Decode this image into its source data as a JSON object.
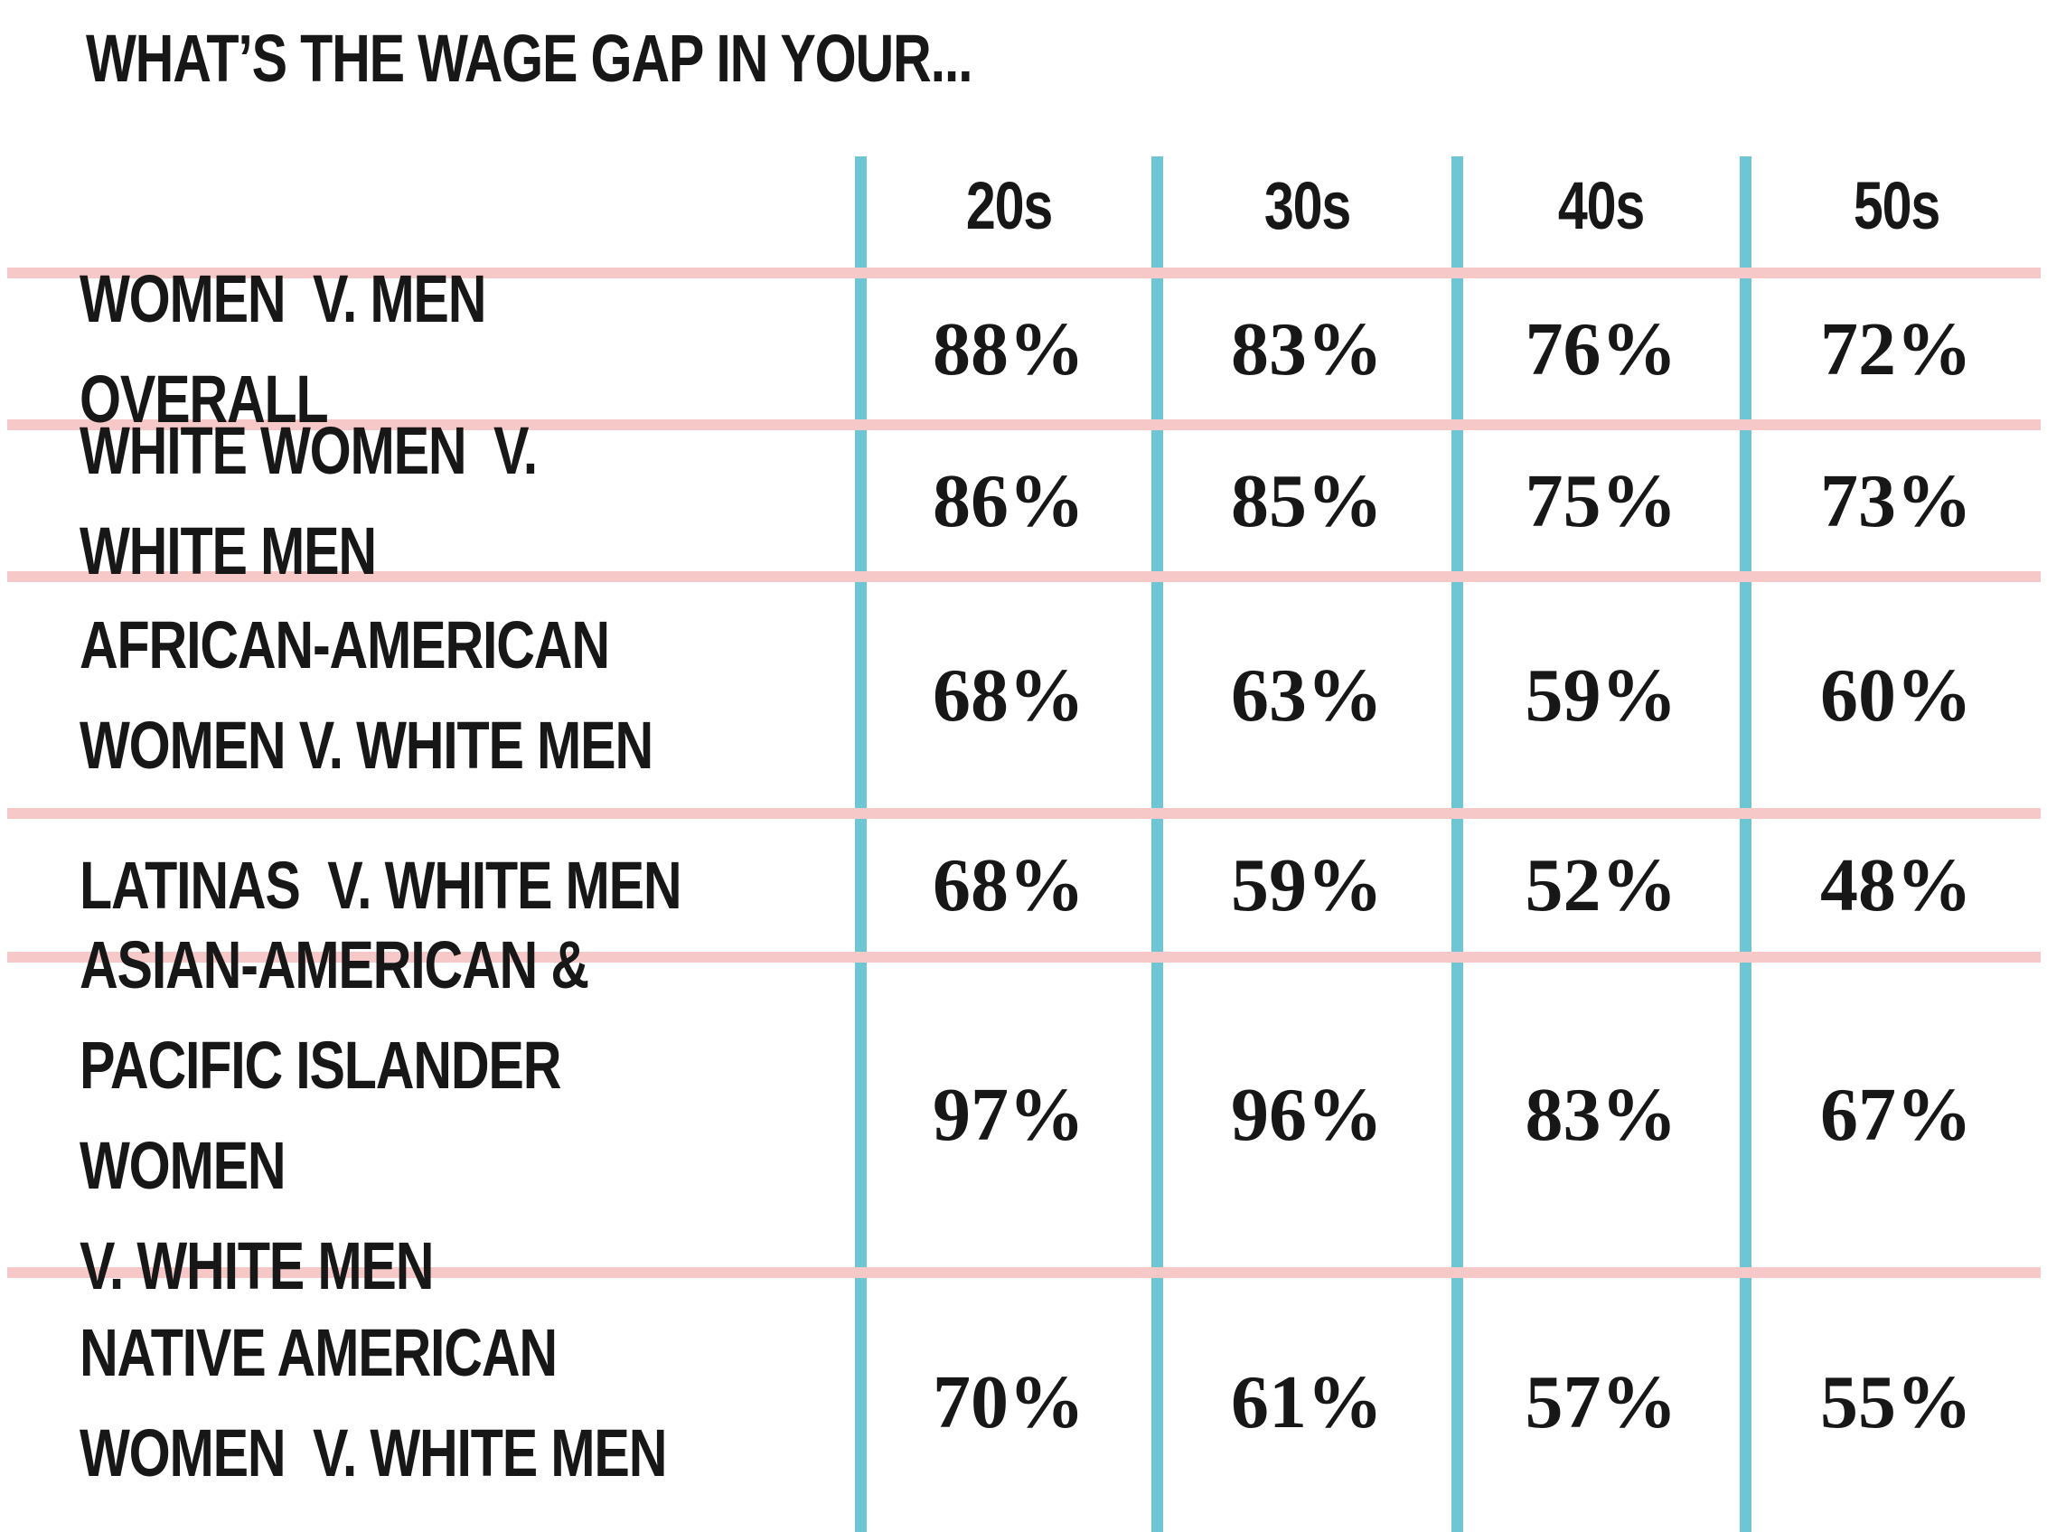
{
  "colors": {
    "divider_teal": "#6ec6d4",
    "divider_pink": "#f6c9c8",
    "text": "#171717",
    "background": "#ffffff"
  },
  "chart_data": {
    "type": "table",
    "title": "WHAT’S THE WAGE GAP IN YOUR...",
    "columns": [
      "20s",
      "30s",
      "40s",
      "50s"
    ],
    "rows": [
      {
        "label": "WOMEN  V. MEN OVERALL",
        "values": [
          "88%",
          "83%",
          "76%",
          "72%"
        ]
      },
      {
        "label": "WHITE WOMEN  V. WHITE MEN",
        "values": [
          "86%",
          "85%",
          "75%",
          "73%"
        ]
      },
      {
        "label": "AFRICAN-AMERICAN\nWOMEN V. WHITE MEN",
        "values": [
          "68%",
          "63%",
          "59%",
          "60%"
        ]
      },
      {
        "label": "LATINAS  V. WHITE MEN",
        "values": [
          "68%",
          "59%",
          "52%",
          "48%"
        ]
      },
      {
        "label": "ASIAN-AMERICAN &\nPACIFIC ISLANDER WOMEN\nV. WHITE MEN",
        "values": [
          "97%",
          "96%",
          "83%",
          "67%"
        ]
      },
      {
        "label": "NATIVE AMERICAN\nWOMEN  V. WHITE MEN",
        "values": [
          "70%",
          "61%",
          "57%",
          "55%"
        ]
      }
    ],
    "legend": null,
    "grid": "teal vertical column dividers, pink horizontal row dividers"
  }
}
